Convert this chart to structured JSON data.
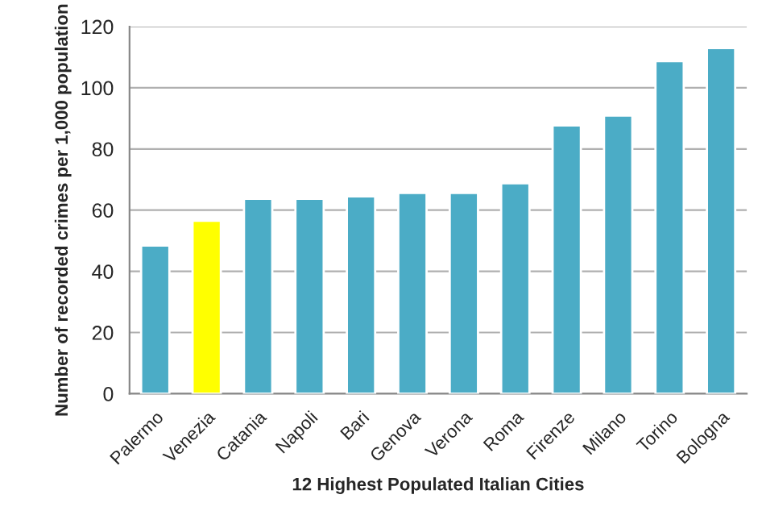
{
  "chart_data": {
    "type": "bar",
    "xlabel": "12 Highest Populated Italian Cities",
    "ylabel": "Number of recorded crimes per 1,000 population",
    "categories": [
      "Palermo",
      "Venezia",
      "Catania",
      "Napoli",
      "Bari",
      "Genova",
      "Verona",
      "Roma",
      "Firenze",
      "Milano",
      "Torino",
      "Bologna"
    ],
    "values": [
      48.4,
      56.5,
      63.7,
      63.7,
      64.5,
      65.6,
      65.6,
      68.8,
      87.7,
      90.9,
      108.7,
      113.0
    ],
    "colors": [
      "#4bacc6",
      "#ffff00",
      "#4bacc6",
      "#4bacc6",
      "#4bacc6",
      "#4bacc6",
      "#4bacc6",
      "#4bacc6",
      "#4bacc6",
      "#4bacc6",
      "#4bacc6",
      "#4bacc6"
    ],
    "ylim": [
      0,
      120
    ],
    "yticks": [
      0,
      20,
      40,
      60,
      80,
      100,
      120
    ],
    "grid": "y"
  }
}
